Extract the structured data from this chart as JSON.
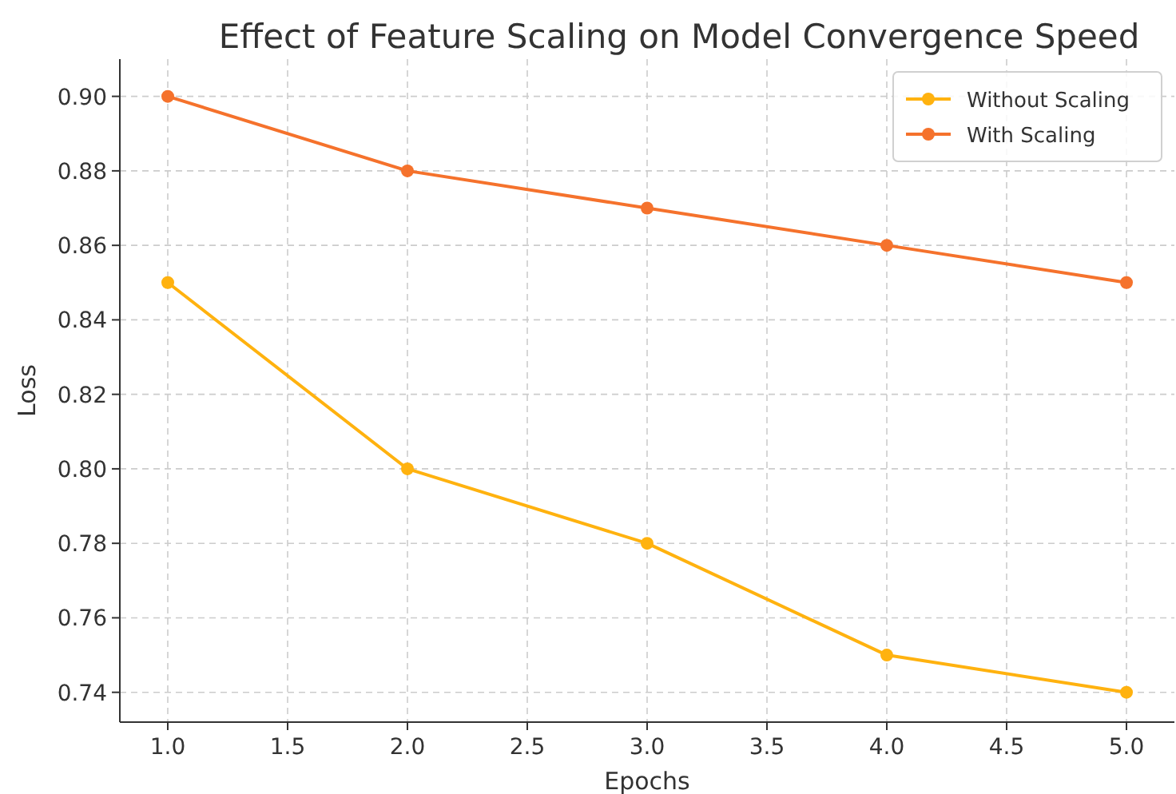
{
  "chart_data": {
    "type": "line",
    "title": "Effect of Feature Scaling on Model Convergence Speed",
    "xlabel": "Epochs",
    "ylabel": "Loss",
    "x": [
      1,
      2,
      3,
      4,
      5
    ],
    "series": [
      {
        "name": "Without Scaling",
        "color": "#ffb20f",
        "values": [
          0.85,
          0.8,
          0.78,
          0.75,
          0.74
        ]
      },
      {
        "name": "With Scaling",
        "color": "#f5722c",
        "values": [
          0.9,
          0.88,
          0.87,
          0.86,
          0.85
        ]
      }
    ],
    "xlim": [
      0.8,
      5.2
    ],
    "xticks": [
      {
        "value": 1,
        "label": "1.0"
      },
      {
        "value": 1.5,
        "label": "1.5"
      },
      {
        "value": 2,
        "label": "2.0"
      },
      {
        "value": 2.5,
        "label": "2.5"
      },
      {
        "value": 3,
        "label": "3.0"
      },
      {
        "value": 3.5,
        "label": "3.5"
      },
      {
        "value": 4,
        "label": "4.0"
      },
      {
        "value": 4.5,
        "label": "4.5"
      },
      {
        "value": 5,
        "label": "5.0"
      }
    ],
    "ylim": [
      0.732,
      0.91
    ],
    "yticks": [
      {
        "value": 0.74,
        "label": "0.74"
      },
      {
        "value": 0.76,
        "label": "0.76"
      },
      {
        "value": 0.78,
        "label": "0.78"
      },
      {
        "value": 0.8,
        "label": "0.80"
      },
      {
        "value": 0.82,
        "label": "0.82"
      },
      {
        "value": 0.84,
        "label": "0.84"
      },
      {
        "value": 0.86,
        "label": "0.86"
      },
      {
        "value": 0.88,
        "label": "0.88"
      },
      {
        "value": 0.9,
        "label": "0.90"
      }
    ],
    "grid": true,
    "legend": "top right",
    "marker": "circle",
    "line_style": "solid"
  }
}
